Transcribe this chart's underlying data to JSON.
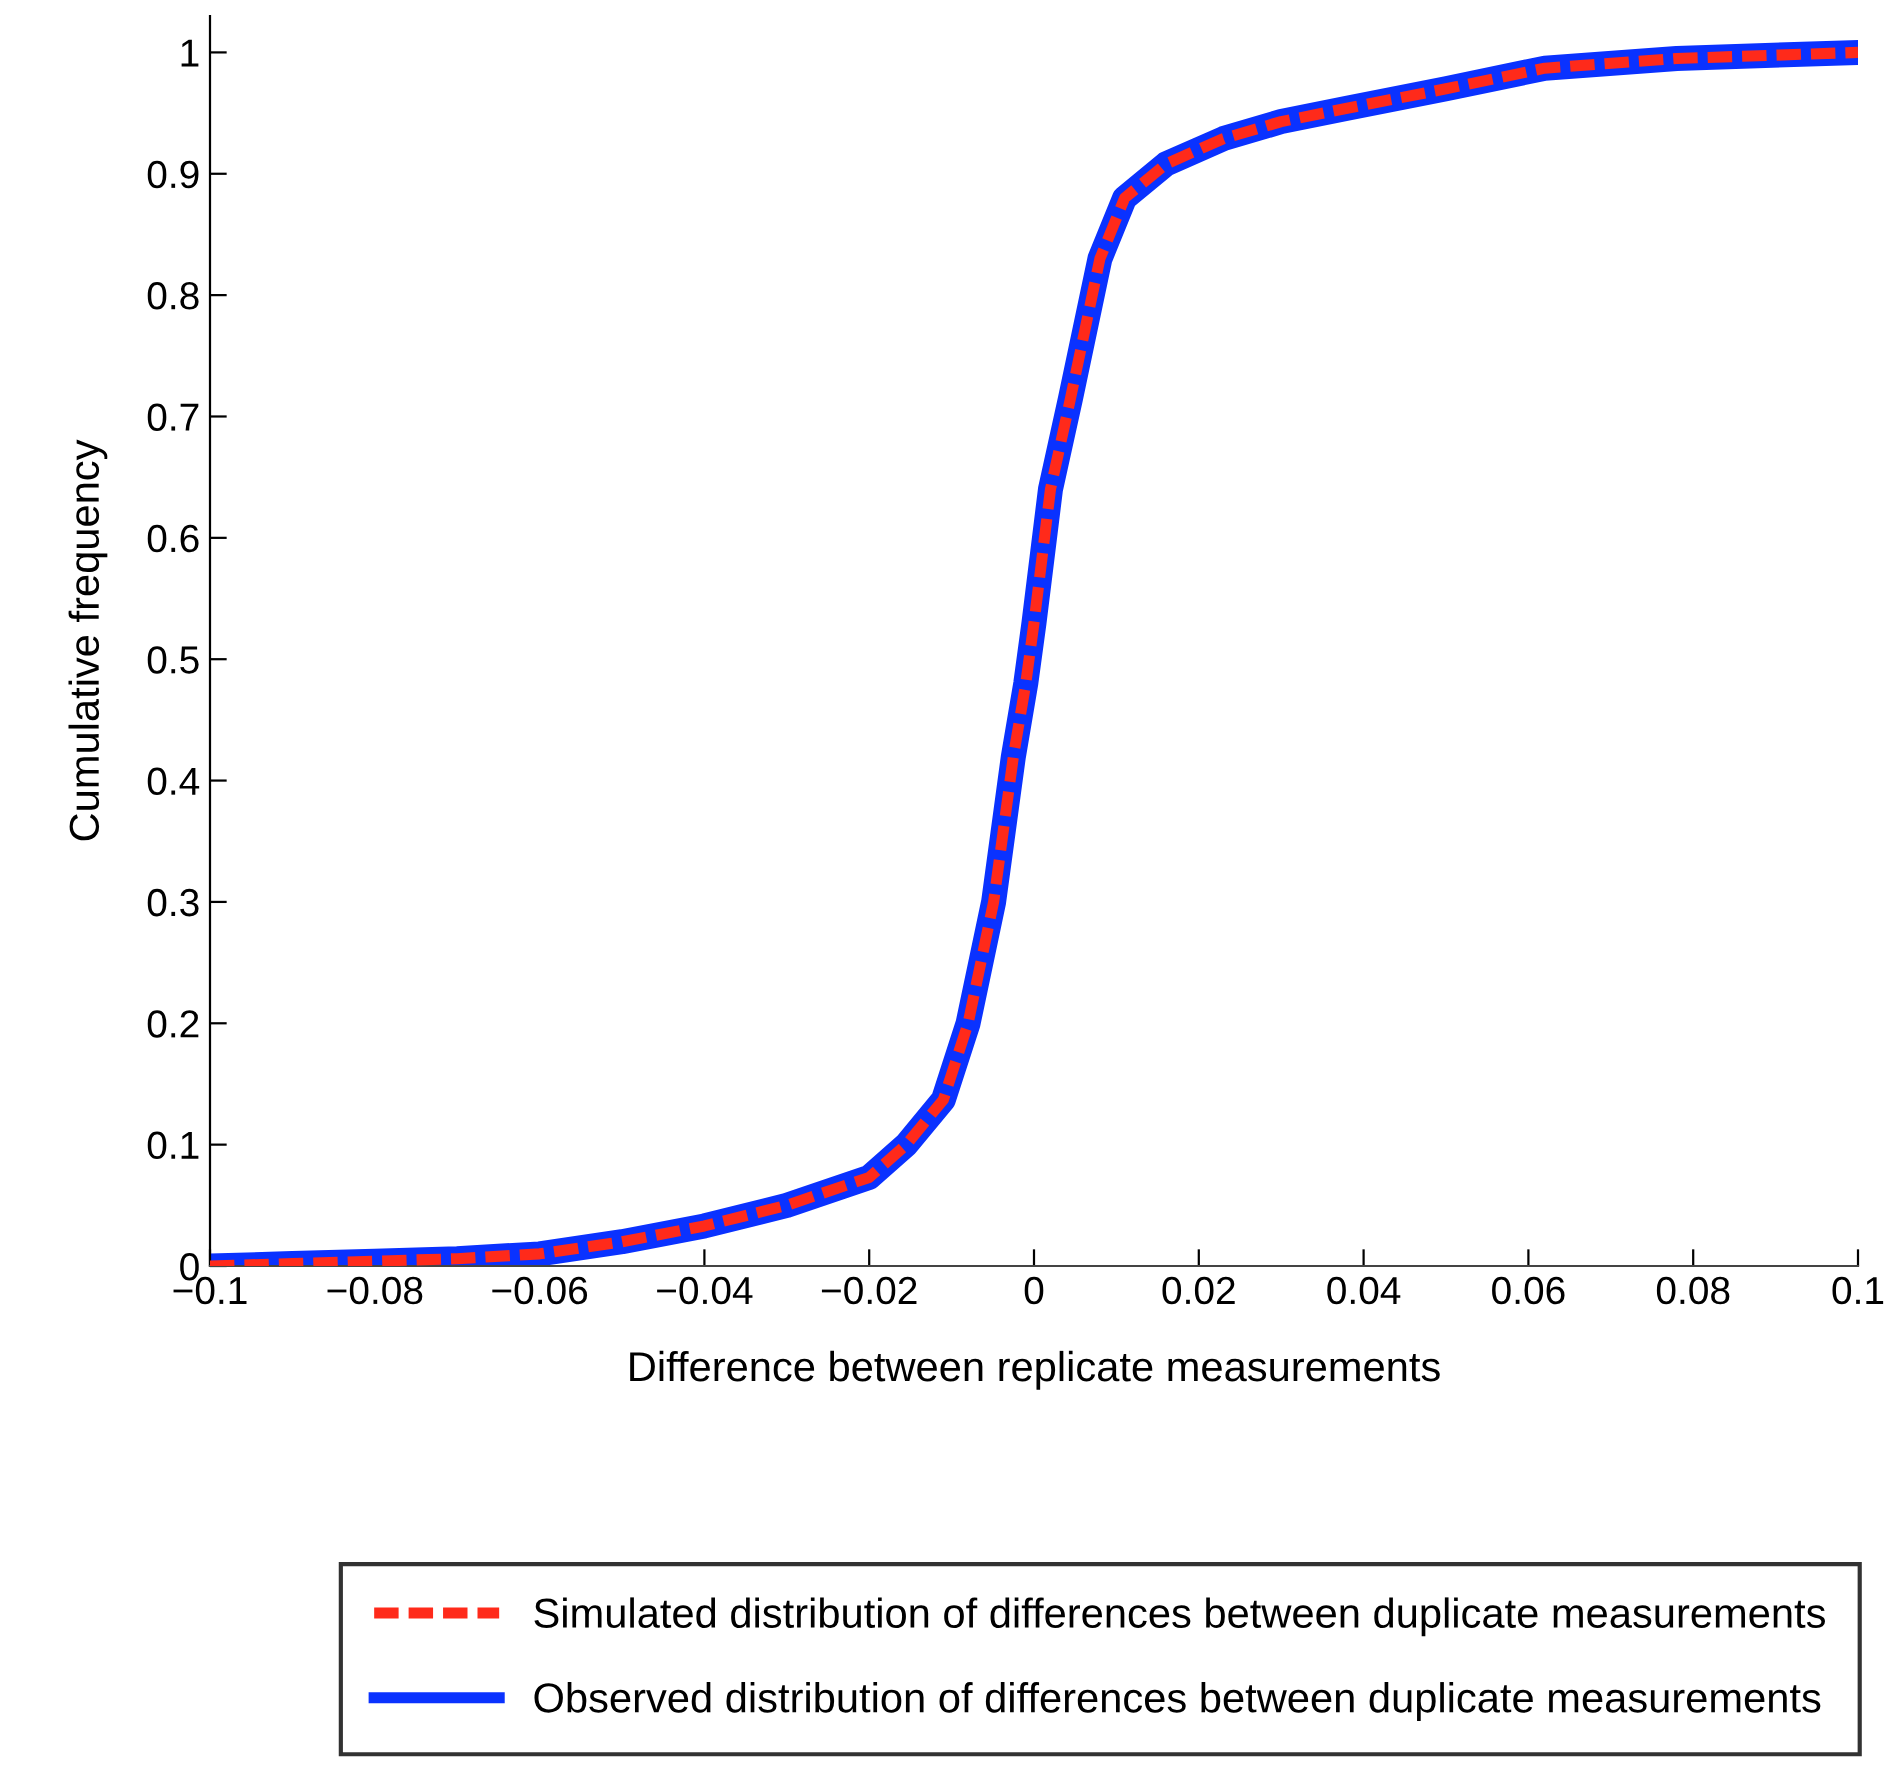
{
  "chart_data": {
    "type": "line",
    "xlabel": "Difference between replicate measurements",
    "ylabel": "Cumulative frequency",
    "x": [
      -0.1,
      -0.09,
      -0.08,
      -0.07,
      -0.06,
      -0.05,
      -0.04,
      -0.03,
      -0.02,
      -0.0155,
      -0.011,
      -0.008,
      -0.0049,
      -0.0025,
      -0.001,
      0.0,
      0.002,
      0.0044,
      0.008,
      0.011,
      0.016,
      0.023,
      0.03,
      0.038,
      0.05,
      0.062,
      0.078,
      0.1
    ],
    "series": [
      {
        "name": "Observed distribution of differences between duplicate measurements",
        "color": "#0a32ff",
        "line_style": "solid",
        "values": [
          0,
          0.002,
          0.004,
          0.006,
          0.01,
          0.02,
          0.033,
          0.05,
          0.073,
          0.1,
          0.137,
          0.2,
          0.3,
          0.42,
          0.48,
          0.53,
          0.64,
          0.714,
          0.83,
          0.88,
          0.908,
          0.929,
          0.943,
          0.954,
          0.97,
          0.987,
          0.995,
          1.0
        ]
      },
      {
        "name": "Simulated distribution of differences between duplicate measurements",
        "color": "#ff2a1a",
        "line_style": "dashed",
        "values": [
          0,
          0.002,
          0.004,
          0.006,
          0.01,
          0.02,
          0.033,
          0.05,
          0.073,
          0.1,
          0.137,
          0.2,
          0.3,
          0.42,
          0.48,
          0.53,
          0.64,
          0.714,
          0.83,
          0.88,
          0.908,
          0.929,
          0.943,
          0.954,
          0.97,
          0.987,
          0.995,
          1.0
        ]
      }
    ],
    "xlim": [
      -0.1,
      0.1
    ],
    "xticks": [
      {
        "value": -0.1,
        "label": "−0.1"
      },
      {
        "value": -0.08,
        "label": "−0.08"
      },
      {
        "value": -0.06,
        "label": "−0.06"
      },
      {
        "value": -0.04,
        "label": "−0.04"
      },
      {
        "value": -0.02,
        "label": "−0.02"
      },
      0,
      0.02,
      0.04,
      0.06,
      0.08,
      0.1
    ],
    "ylim": [
      0,
      1.03
    ],
    "yticks": [
      0,
      0.1,
      0.2,
      0.3,
      0.4,
      0.5,
      0.6,
      0.7,
      0.8,
      0.9,
      1
    ],
    "grid": false,
    "legend": "bottom",
    "marker": "none"
  }
}
